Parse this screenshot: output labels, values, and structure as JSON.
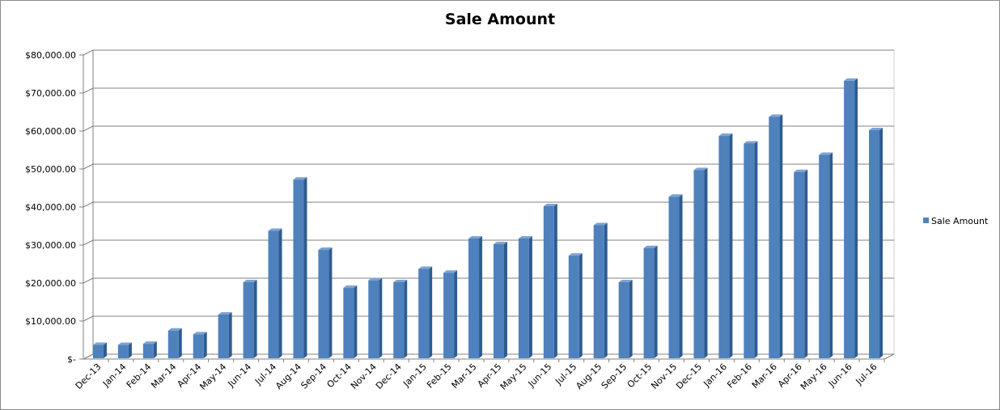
{
  "chart_data": {
    "type": "bar",
    "title": "Sale Amount",
    "categories": [
      "Dec-13",
      "Jan-14",
      "Feb-14",
      "Mar-14",
      "Apr-14",
      "May-14",
      "Jun-14",
      "Jul-14",
      "Aug-14",
      "Sep-14",
      "Oct-14",
      "Nov-14",
      "Dec-14",
      "Jan-15",
      "Feb-15",
      "Mar-15",
      "Apr-15",
      "May-15",
      "Jun-15",
      "Jul-15",
      "Aug-15",
      "Sep-15",
      "Oct-15",
      "Nov-15",
      "Dec-15",
      "Jan-16",
      "Feb-16",
      "Mar-16",
      "Apr-16",
      "May-16",
      "Jun-16",
      "Jul-16"
    ],
    "series": [
      {
        "name": "Sale Amount",
        "color": "#4f81bd",
        "values": [
          3500,
          3500,
          3800,
          7300,
          6300,
          11500,
          20000,
          33500,
          47000,
          28500,
          18500,
          20500,
          20000,
          23500,
          22500,
          31500,
          30000,
          31500,
          40000,
          27000,
          35000,
          20000,
          29000,
          42500,
          49500,
          58500,
          56500,
          63500,
          49000,
          53500,
          73000,
          60000
        ]
      }
    ],
    "ylim": [
      0,
      80000
    ],
    "yticks": [
      0,
      10000,
      20000,
      30000,
      40000,
      50000,
      60000,
      70000,
      80000
    ],
    "ytick_labels": [
      "$-",
      "$10,000.00",
      "$20,000.00",
      "$30,000.00",
      "$40,000.00",
      "$50,000.00",
      "$60,000.00",
      "$70,000.00",
      "$80,000.00"
    ],
    "xlabel": "",
    "ylabel": "",
    "grid": true,
    "legend": "right"
  }
}
